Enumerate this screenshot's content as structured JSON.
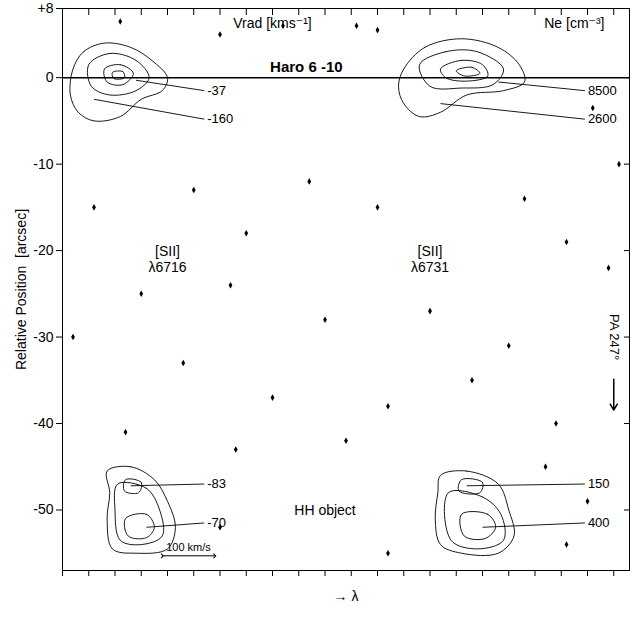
{
  "chart_data": {
    "type": "contour",
    "title": "Haro 6 -10",
    "xlabel": "→ λ",
    "ylabel": "Relative Position  [arcsec]",
    "xlim": [
      0,
      1080
    ],
    "ylim": [
      -57,
      8
    ],
    "xticks": [
      0,
      50,
      100,
      150,
      200,
      250,
      300,
      350,
      400,
      450,
      500,
      550,
      600,
      650,
      700,
      750,
      800,
      850,
      900,
      950,
      1000,
      1050
    ],
    "yticks": [
      {
        "value": 8,
        "label": "+8"
      },
      0,
      -10,
      -20,
      -30,
      -40,
      -50
    ],
    "tick_labels": "y",
    "color": "#000000",
    "source_position": 0,
    "contours": [
      [
        [
          20,
          1
        ],
        [
          40,
          3
        ],
        [
          80,
          4
        ],
        [
          130,
          3.5
        ],
        [
          170,
          2
        ],
        [
          200,
          0
        ],
        [
          190,
          -1.5
        ],
        [
          150,
          -2.5
        ],
        [
          110,
          -4.5
        ],
        [
          60,
          -5
        ],
        [
          30,
          -4
        ],
        [
          15,
          -2
        ]
      ],
      [
        [
          50,
          1.5
        ],
        [
          90,
          2.8
        ],
        [
          140,
          2
        ],
        [
          165,
          0
        ],
        [
          140,
          -1.5
        ],
        [
          90,
          -2
        ],
        [
          55,
          -1
        ]
      ],
      [
        [
          80,
          1
        ],
        [
          110,
          1.5
        ],
        [
          135,
          0.5
        ],
        [
          115,
          -0.8
        ],
        [
          85,
          -0.5
        ]
      ],
      [
        [
          95,
          0.6
        ],
        [
          115,
          0.7
        ],
        [
          118,
          0
        ],
        [
          98,
          -0.1
        ]
      ],
      [
        [
          650,
          1
        ],
        [
          690,
          3.5
        ],
        [
          760,
          4.5
        ],
        [
          830,
          3.5
        ],
        [
          870,
          1.5
        ],
        [
          880,
          -0.5
        ],
        [
          840,
          -1.5
        ],
        [
          770,
          -2
        ],
        [
          720,
          -4
        ],
        [
          680,
          -4.5
        ],
        [
          650,
          -3
        ],
        [
          640,
          -1
        ]
      ],
      [
        [
          680,
          1.5
        ],
        [
          730,
          3
        ],
        [
          790,
          3
        ],
        [
          840,
          1
        ],
        [
          820,
          -0.8
        ],
        [
          760,
          -1.2
        ],
        [
          700,
          -1
        ]
      ],
      [
        [
          720,
          1
        ],
        [
          760,
          2
        ],
        [
          800,
          1.5
        ],
        [
          810,
          0.2
        ],
        [
          770,
          -0.4
        ],
        [
          730,
          0
        ]
      ],
      [
        [
          750,
          0.8
        ],
        [
          780,
          1.2
        ],
        [
          795,
          0.5
        ],
        [
          765,
          0.2
        ]
      ],
      [
        [
          85,
          -45.5
        ],
        [
          130,
          -45
        ],
        [
          175,
          -46.5
        ],
        [
          200,
          -49
        ],
        [
          215,
          -52
        ],
        [
          200,
          -54.5
        ],
        [
          140,
          -55
        ],
        [
          95,
          -54.5
        ],
        [
          85,
          -51
        ],
        [
          90,
          -48
        ]
      ],
      [
        [
          105,
          -47
        ],
        [
          160,
          -47.5
        ],
        [
          185,
          -50
        ],
        [
          190,
          -53
        ],
        [
          150,
          -54
        ],
        [
          110,
          -53.5
        ],
        [
          100,
          -50
        ]
      ],
      [
        [
          120,
          -51
        ],
        [
          160,
          -50.5
        ],
        [
          175,
          -52
        ],
        [
          160,
          -53.2
        ],
        [
          125,
          -53
        ]
      ],
      [
        [
          120,
          -46.5
        ],
        [
          150,
          -46.8
        ],
        [
          145,
          -48
        ],
        [
          118,
          -47.8
        ]
      ],
      [
        [
          720,
          -46
        ],
        [
          770,
          -45.5
        ],
        [
          830,
          -47
        ],
        [
          850,
          -50
        ],
        [
          860,
          -53
        ],
        [
          830,
          -55
        ],
        [
          760,
          -55
        ],
        [
          720,
          -54
        ],
        [
          710,
          -51
        ],
        [
          715,
          -48
        ]
      ],
      [
        [
          735,
          -48
        ],
        [
          800,
          -48.5
        ],
        [
          835,
          -50.5
        ],
        [
          840,
          -53.5
        ],
        [
          790,
          -54.5
        ],
        [
          740,
          -53.5
        ]
      ],
      [
        [
          760,
          -50.5
        ],
        [
          810,
          -50.5
        ],
        [
          825,
          -52
        ],
        [
          805,
          -53.3
        ],
        [
          765,
          -53
        ]
      ],
      [
        [
          760,
          -46.5
        ],
        [
          800,
          -46.8
        ],
        [
          795,
          -48
        ],
        [
          755,
          -47.8
        ]
      ]
    ],
    "noise": [
      [
        110,
        6.5
      ],
      [
        300,
        5
      ],
      [
        420,
        6
      ],
      [
        560,
        6
      ],
      [
        600,
        5.5
      ],
      [
        1010,
        -3.5
      ],
      [
        1060,
        -10
      ],
      [
        60,
        -15
      ],
      [
        250,
        -13
      ],
      [
        350,
        -18
      ],
      [
        470,
        -12
      ],
      [
        600,
        -15
      ],
      [
        880,
        -14
      ],
      [
        960,
        -19
      ],
      [
        1040,
        -22
      ],
      [
        150,
        -25
      ],
      [
        320,
        -24
      ],
      [
        500,
        -28
      ],
      [
        700,
        -27
      ],
      [
        850,
        -31
      ],
      [
        20,
        -30
      ],
      [
        230,
        -33
      ],
      [
        400,
        -37
      ],
      [
        620,
        -38
      ],
      [
        780,
        -35
      ],
      [
        940,
        -40
      ],
      [
        120,
        -41
      ],
      [
        330,
        -43
      ],
      [
        540,
        -42
      ],
      [
        920,
        -45
      ],
      [
        1000,
        -49
      ],
      [
        300,
        -52
      ],
      [
        620,
        -55
      ],
      [
        960,
        -54
      ]
    ],
    "annotations": [
      {
        "text": "-37",
        "x": 270,
        "y": -1.5,
        "target": [
          140,
          -0.3
        ]
      },
      {
        "text": "-160",
        "x": 270,
        "y": -4.8,
        "target": [
          60,
          -2.5
        ]
      },
      {
        "text": "8500",
        "x": 995,
        "y": -1.5,
        "target": [
          830,
          -0.5
        ]
      },
      {
        "text": "2600",
        "x": 995,
        "y": -4.8,
        "target": [
          720,
          -3
        ]
      },
      {
        "text": "-83",
        "x": 270,
        "y": -47,
        "target": [
          130,
          -47.2
        ]
      },
      {
        "text": "-70",
        "x": 270,
        "y": -51.5,
        "target": [
          160,
          -52
        ]
      },
      {
        "text": "150",
        "x": 995,
        "y": -47,
        "target": [
          770,
          -47.2
        ]
      },
      {
        "text": "400",
        "x": 995,
        "y": -51.5,
        "target": [
          800,
          -52
        ]
      }
    ],
    "texts": [
      {
        "text": "Vrad [kms⁻¹]",
        "x": 400,
        "y": 6.3
      },
      {
        "text": "Ne [cm⁻³]",
        "x": 975,
        "y": 6.3
      },
      {
        "text": "[SII]\nλ6716",
        "x": 200,
        "y": -21
      },
      {
        "text": "[SII]\nλ6731",
        "x": 700,
        "y": -21
      },
      {
        "text": "HH object",
        "x": 500,
        "y": -50
      }
    ],
    "scale_bar": {
      "x": [
        190,
        290
      ],
      "y": -55.3,
      "label": "100 km/s"
    },
    "direction": {
      "text": "PA 247°",
      "x": 1050,
      "y": -30
    }
  }
}
